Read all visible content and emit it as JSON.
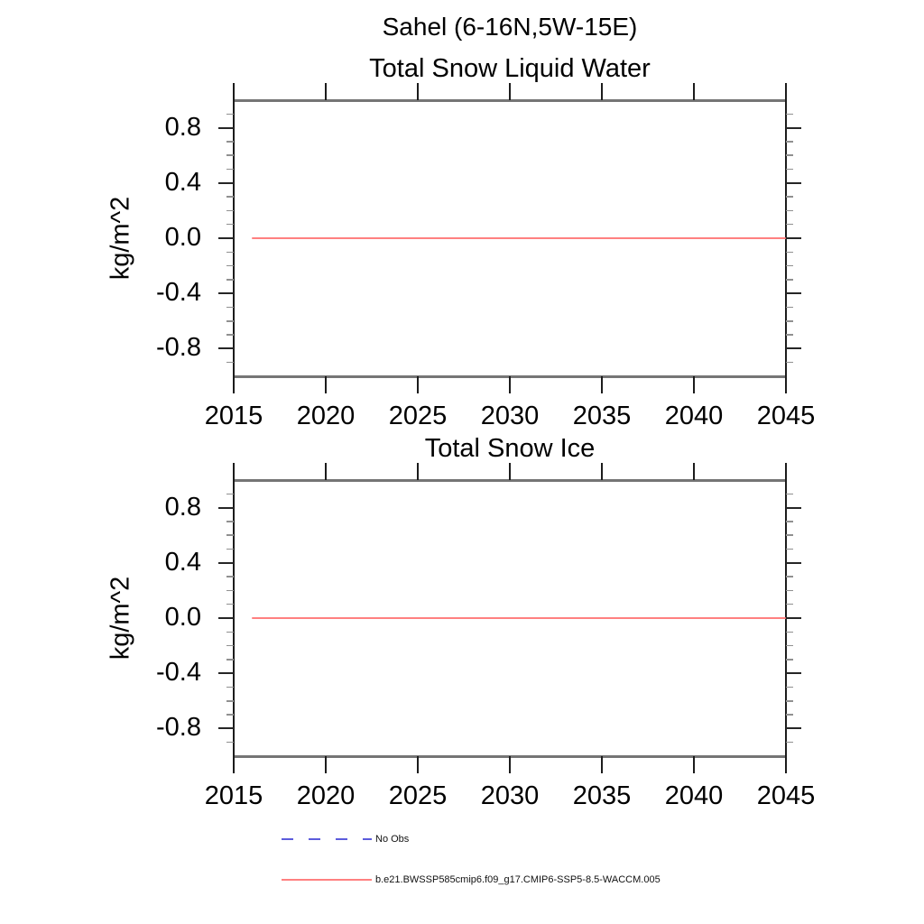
{
  "suptitle": "Sahel (6-16N,5W-15E)",
  "legend": {
    "items": [
      {
        "label": "No Obs",
        "color": "#5c5cdc",
        "style": "dashed"
      },
      {
        "label": "b.e21.BWSSP585cmip6.f09_g17.CMIP6-SSP5-8.5-WACCM.005",
        "color": "#ff8080",
        "style": "solid"
      }
    ]
  },
  "chart_data": [
    {
      "type": "line",
      "title": "Total Snow Liquid Water",
      "xlabel": "",
      "ylabel": "kg/m^2",
      "xlim": [
        2015,
        2045
      ],
      "ylim": [
        -1.0,
        1.0
      ],
      "grid": false,
      "xticks": [
        2015,
        2020,
        2025,
        2030,
        2035,
        2040,
        2045
      ],
      "ytick_values": [
        0.8,
        0.4,
        0.0,
        -0.4,
        -0.8
      ],
      "ytick_labels": [
        "0.8",
        "0.4",
        "0.0",
        "-0.4",
        "-0.8"
      ],
      "yminor_step": 0.1,
      "series": [
        {
          "name": "b.e21.BWSSP585cmip6.f09_g17.CMIP6-SSP5-8.5-WACCM.005",
          "color": "#ff8080",
          "x": [
            2016,
            2045
          ],
          "y": [
            0.0,
            0.0
          ]
        }
      ]
    },
    {
      "type": "line",
      "title": "Total Snow Ice",
      "xlabel": "",
      "ylabel": "kg/m^2",
      "xlim": [
        2015,
        2045
      ],
      "ylim": [
        -1.0,
        1.0
      ],
      "grid": false,
      "xticks": [
        2015,
        2020,
        2025,
        2030,
        2035,
        2040,
        2045
      ],
      "ytick_values": [
        0.8,
        0.4,
        0.0,
        -0.4,
        -0.8
      ],
      "ytick_labels": [
        "0.8",
        "0.4",
        "0.0",
        "-0.4",
        "-0.8"
      ],
      "yminor_step": 0.1,
      "series": [
        {
          "name": "b.e21.BWSSP585cmip6.f09_g17.CMIP6-SSP5-8.5-WACCM.005",
          "color": "#ff8080",
          "x": [
            2016,
            2045
          ],
          "y": [
            0.0,
            0.0
          ]
        }
      ]
    }
  ]
}
